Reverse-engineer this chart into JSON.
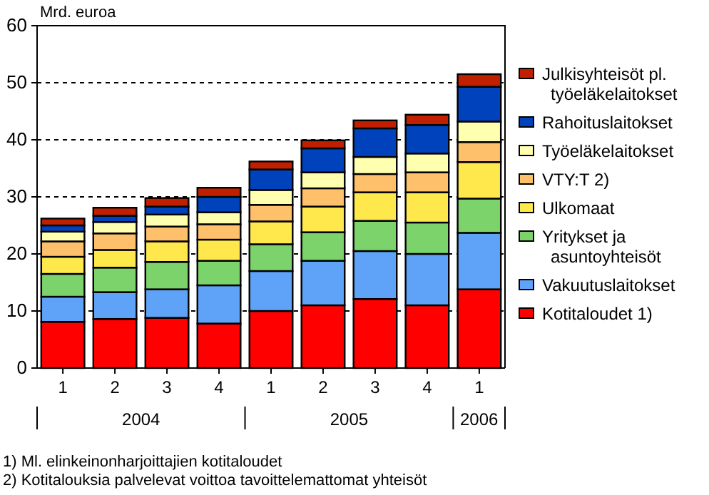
{
  "chart_data": {
    "type": "bar",
    "stacked": true,
    "ylabel": "Mrd. euroa",
    "categories": [
      "1",
      "2",
      "3",
      "4",
      "1",
      "2",
      "3",
      "4",
      "1"
    ],
    "series": [
      {
        "name": "Kotitaloudet 1)",
        "color": "#ff0000",
        "values": [
          8.1,
          8.6,
          8.8,
          7.8,
          10.0,
          11.0,
          12.1,
          11.0,
          13.8
        ]
      },
      {
        "name": "Vakuutuslaitokset",
        "color": "#5fa3f8",
        "values": [
          4.4,
          4.7,
          5.0,
          6.7,
          7.0,
          7.8,
          8.4,
          9.0,
          9.9
        ]
      },
      {
        "name": "Yritykset ja asuntoyhteisöt",
        "color": "#7dd36b",
        "values": [
          4.0,
          4.3,
          4.8,
          4.3,
          4.7,
          5.0,
          5.3,
          5.5,
          6.0
        ]
      },
      {
        "name": "Ulkomaat",
        "color": "#ffe84b",
        "values": [
          3.0,
          3.1,
          3.6,
          3.7,
          4.0,
          4.5,
          5.0,
          5.3,
          6.4
        ]
      },
      {
        "name": "VTY:T 2)",
        "color": "#ffc06b",
        "values": [
          2.7,
          2.9,
          2.6,
          2.7,
          2.9,
          3.2,
          3.2,
          3.5,
          3.5
        ]
      },
      {
        "name": "Työeläkelaitokset",
        "color": "#ffffb0",
        "values": [
          1.7,
          2.0,
          2.1,
          2.1,
          2.6,
          2.8,
          3.0,
          3.3,
          3.6
        ]
      },
      {
        "name": "Rahoituslaitokset",
        "color": "#0042bb",
        "values": [
          1.1,
          1.1,
          1.4,
          2.7,
          3.6,
          4.2,
          5.0,
          5.0,
          6.1
        ]
      },
      {
        "name": "Julkisyhteisöt pl. työeläkelaitokset",
        "color": "#c02000",
        "values": [
          1.2,
          1.4,
          1.5,
          1.6,
          1.4,
          1.4,
          1.4,
          1.8,
          2.2
        ]
      }
    ],
    "ylim": [
      0,
      60
    ],
    "yticks": [
      0,
      10,
      20,
      30,
      40,
      50,
      60
    ],
    "grid": "y",
    "legend": "right",
    "annotations": [
      "2004",
      "2005",
      "2006",
      "1) Ml. elinkeinonharjoittajien kotitaloudet",
      "2) Kotitalouksia palvelevat voittoa tavoittelemattomat yhteisöt"
    ]
  }
}
